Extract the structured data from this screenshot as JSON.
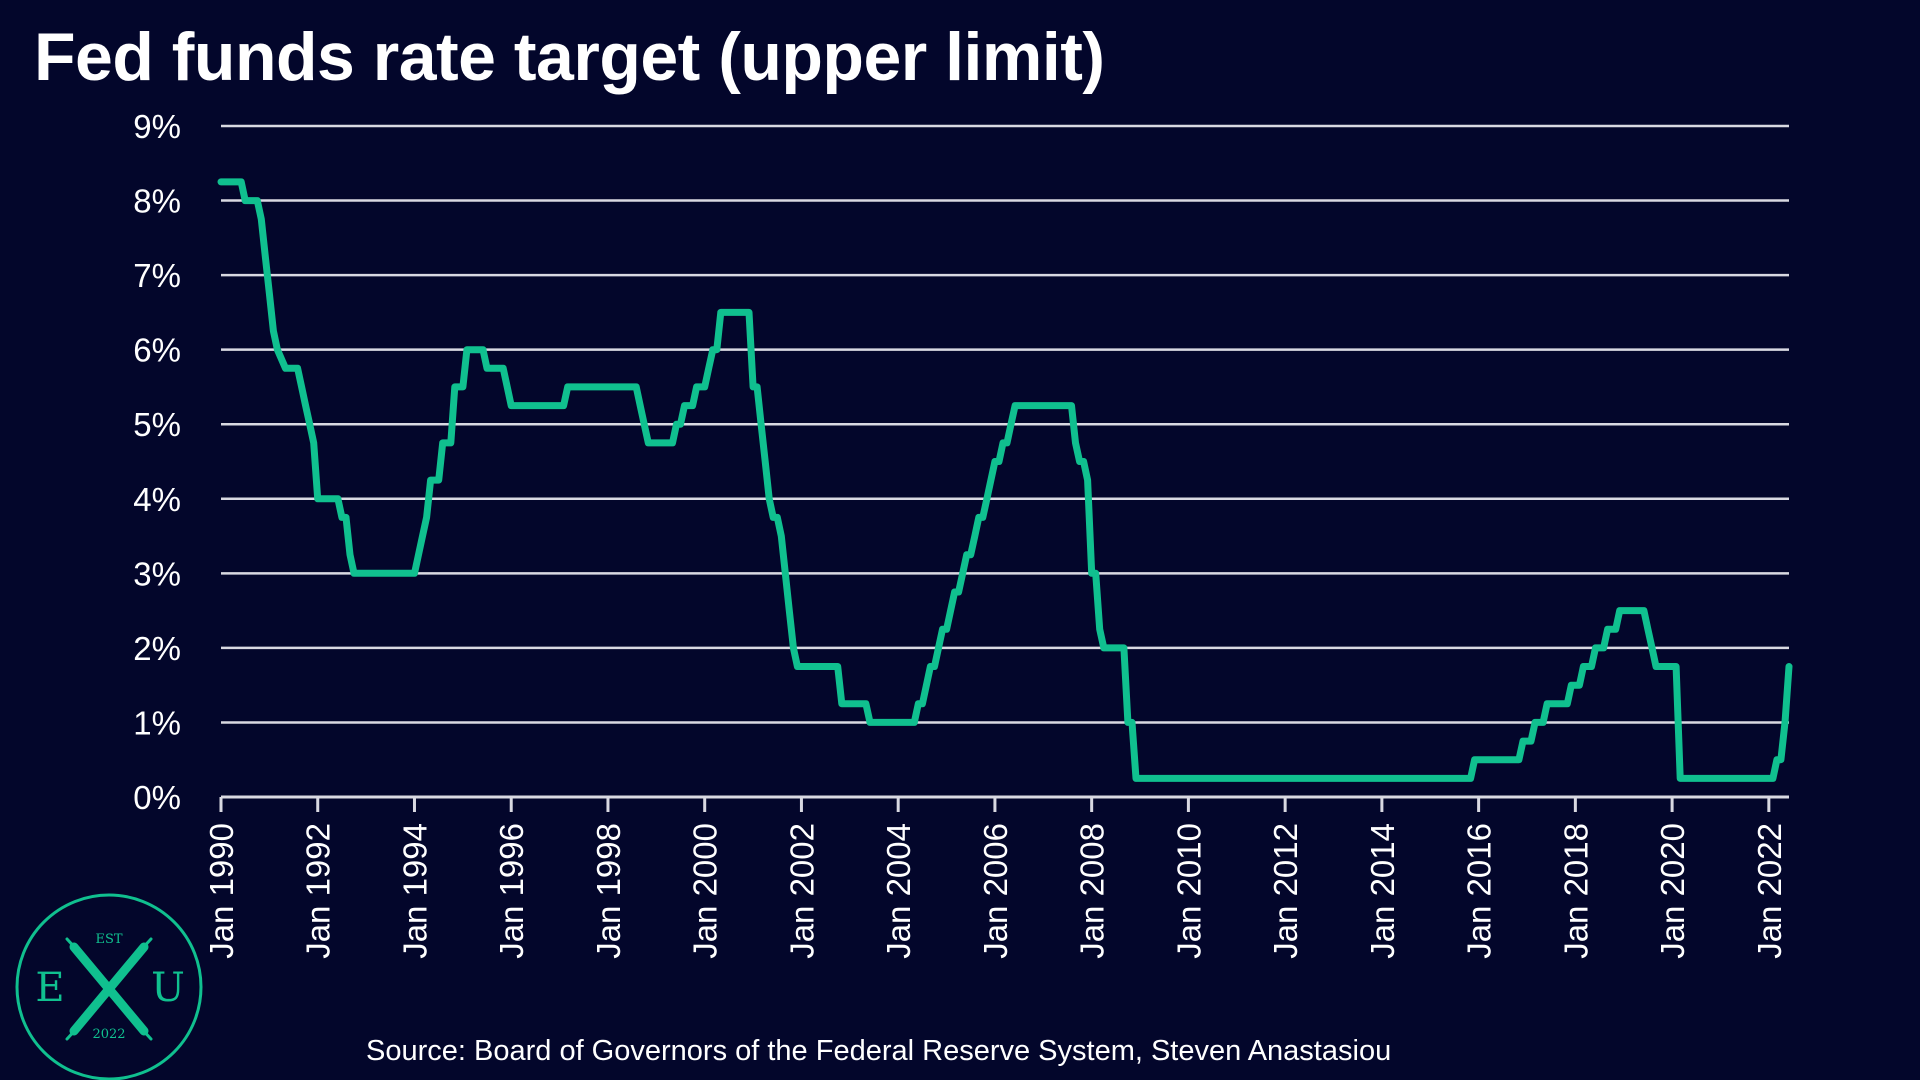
{
  "title": "Fed funds rate target (upper limit)",
  "source": "Source: Board of Governors of the Federal Reserve System, Steven Anastasiou",
  "logo": {
    "top_text": "EST",
    "left_letter": "E",
    "right_letter": "U",
    "bottom_text": "2022",
    "icon": "crossed-x-logo"
  },
  "colors": {
    "background": "#03062b",
    "line": "#10c08f",
    "grid": "#d9d9e2",
    "text": "#ffffff"
  },
  "chart_data": {
    "type": "line",
    "title": "Fed funds rate target (upper limit)",
    "xlabel": "",
    "ylabel": "",
    "xlim": [
      "1990-01",
      "2022-06"
    ],
    "ylim": [
      0,
      9
    ],
    "y_ticks": [
      "0%",
      "1%",
      "2%",
      "3%",
      "4%",
      "5%",
      "6%",
      "7%",
      "8%",
      "9%"
    ],
    "x_ticks": [
      "Jan 1990",
      "Jan 1992",
      "Jan 1994",
      "Jan 1996",
      "Jan 1998",
      "Jan 2000",
      "Jan 2002",
      "Jan 2004",
      "Jan 2006",
      "Jan 2008",
      "Jan 2010",
      "Jan 2012",
      "Jan 2014",
      "Jan 2016",
      "Jan 2018",
      "Jan 2020",
      "Jan 2022"
    ],
    "grid": "horizontal",
    "legend": "none",
    "series": [
      {
        "values": [
          [
            "1990-01",
            8.25
          ],
          [
            "1990-06",
            8.25
          ],
          [
            "1990-07",
            8.0
          ],
          [
            "1990-10",
            8.0
          ],
          [
            "1990-11",
            7.75
          ],
          [
            "1990-12",
            7.25
          ],
          [
            "1991-01",
            6.75
          ],
          [
            "1991-02",
            6.25
          ],
          [
            "1991-03",
            6.0
          ],
          [
            "1991-05",
            5.75
          ],
          [
            "1991-08",
            5.75
          ],
          [
            "1991-09",
            5.5
          ],
          [
            "1991-10",
            5.25
          ],
          [
            "1991-11",
            5.0
          ],
          [
            "1991-12",
            4.75
          ],
          [
            "1992-01",
            4.0
          ],
          [
            "1992-06",
            4.0
          ],
          [
            "1992-07",
            3.75
          ],
          [
            "1992-08",
            3.75
          ],
          [
            "1992-09",
            3.25
          ],
          [
            "1992-10",
            3.0
          ],
          [
            "1994-01",
            3.0
          ],
          [
            "1994-02",
            3.25
          ],
          [
            "1994-03",
            3.5
          ],
          [
            "1994-04",
            3.75
          ],
          [
            "1994-05",
            4.25
          ],
          [
            "1994-07",
            4.25
          ],
          [
            "1994-08",
            4.75
          ],
          [
            "1994-10",
            4.75
          ],
          [
            "1994-11",
            5.5
          ],
          [
            "1995-01",
            5.5
          ],
          [
            "1995-02",
            6.0
          ],
          [
            "1995-06",
            6.0
          ],
          [
            "1995-07",
            5.75
          ],
          [
            "1995-11",
            5.75
          ],
          [
            "1995-12",
            5.5
          ],
          [
            "1996-01",
            5.25
          ],
          [
            "1997-02",
            5.25
          ],
          [
            "1997-03",
            5.5
          ],
          [
            "1998-08",
            5.5
          ],
          [
            "1998-09",
            5.25
          ],
          [
            "1998-10",
            5.0
          ],
          [
            "1998-11",
            4.75
          ],
          [
            "1999-05",
            4.75
          ],
          [
            "1999-06",
            5.0
          ],
          [
            "1999-07",
            5.0
          ],
          [
            "1999-08",
            5.25
          ],
          [
            "1999-10",
            5.25
          ],
          [
            "1999-11",
            5.5
          ],
          [
            "2000-01",
            5.5
          ],
          [
            "2000-02",
            5.75
          ],
          [
            "2000-03",
            6.0
          ],
          [
            "2000-04",
            6.0
          ],
          [
            "2000-05",
            6.5
          ],
          [
            "2000-12",
            6.5
          ],
          [
            "2001-01",
            5.5
          ],
          [
            "2001-02",
            5.5
          ],
          [
            "2001-03",
            5.0
          ],
          [
            "2001-04",
            4.5
          ],
          [
            "2001-05",
            4.0
          ],
          [
            "2001-06",
            3.75
          ],
          [
            "2001-07",
            3.75
          ],
          [
            "2001-08",
            3.5
          ],
          [
            "2001-09",
            3.0
          ],
          [
            "2001-10",
            2.5
          ],
          [
            "2001-11",
            2.0
          ],
          [
            "2001-12",
            1.75
          ],
          [
            "2002-10",
            1.75
          ],
          [
            "2002-11",
            1.25
          ],
          [
            "2003-05",
            1.25
          ],
          [
            "2003-06",
            1.0
          ],
          [
            "2004-05",
            1.0
          ],
          [
            "2004-06",
            1.25
          ],
          [
            "2004-07",
            1.25
          ],
          [
            "2004-08",
            1.5
          ],
          [
            "2004-09",
            1.75
          ],
          [
            "2004-10",
            1.75
          ],
          [
            "2004-11",
            2.0
          ],
          [
            "2004-12",
            2.25
          ],
          [
            "2005-01",
            2.25
          ],
          [
            "2005-02",
            2.5
          ],
          [
            "2005-03",
            2.75
          ],
          [
            "2005-04",
            2.75
          ],
          [
            "2005-05",
            3.0
          ],
          [
            "2005-06",
            3.25
          ],
          [
            "2005-07",
            3.25
          ],
          [
            "2005-08",
            3.5
          ],
          [
            "2005-09",
            3.75
          ],
          [
            "2005-10",
            3.75
          ],
          [
            "2005-11",
            4.0
          ],
          [
            "2005-12",
            4.25
          ],
          [
            "2006-01",
            4.5
          ],
          [
            "2006-02",
            4.5
          ],
          [
            "2006-03",
            4.75
          ],
          [
            "2006-04",
            4.75
          ],
          [
            "2006-05",
            5.0
          ],
          [
            "2006-06",
            5.25
          ],
          [
            "2007-08",
            5.25
          ],
          [
            "2007-09",
            4.75
          ],
          [
            "2007-10",
            4.5
          ],
          [
            "2007-11",
            4.5
          ],
          [
            "2007-12",
            4.25
          ],
          [
            "2008-01",
            3.0
          ],
          [
            "2008-02",
            3.0
          ],
          [
            "2008-03",
            2.25
          ],
          [
            "2008-04",
            2.0
          ],
          [
            "2008-09",
            2.0
          ],
          [
            "2008-10",
            1.0
          ],
          [
            "2008-11",
            1.0
          ],
          [
            "2008-12",
            0.25
          ],
          [
            "2015-11",
            0.25
          ],
          [
            "2015-12",
            0.5
          ],
          [
            "2016-11",
            0.5
          ],
          [
            "2016-12",
            0.75
          ],
          [
            "2017-02",
            0.75
          ],
          [
            "2017-03",
            1.0
          ],
          [
            "2017-05",
            1.0
          ],
          [
            "2017-06",
            1.25
          ],
          [
            "2017-11",
            1.25
          ],
          [
            "2017-12",
            1.5
          ],
          [
            "2018-02",
            1.5
          ],
          [
            "2018-03",
            1.75
          ],
          [
            "2018-05",
            1.75
          ],
          [
            "2018-06",
            2.0
          ],
          [
            "2018-08",
            2.0
          ],
          [
            "2018-09",
            2.25
          ],
          [
            "2018-11",
            2.25
          ],
          [
            "2018-12",
            2.5
          ],
          [
            "2019-06",
            2.5
          ],
          [
            "2019-07",
            2.25
          ],
          [
            "2019-08",
            2.0
          ],
          [
            "2019-09",
            1.75
          ],
          [
            "2019-12",
            1.75
          ],
          [
            "2020-01",
            1.75
          ],
          [
            "2020-02",
            1.75
          ],
          [
            "2020-03",
            0.25
          ],
          [
            "2022-02",
            0.25
          ],
          [
            "2022-03",
            0.5
          ],
          [
            "2022-04",
            0.5
          ],
          [
            "2022-05",
            1.0
          ],
          [
            "2022-06",
            1.75
          ]
        ]
      }
    ]
  }
}
